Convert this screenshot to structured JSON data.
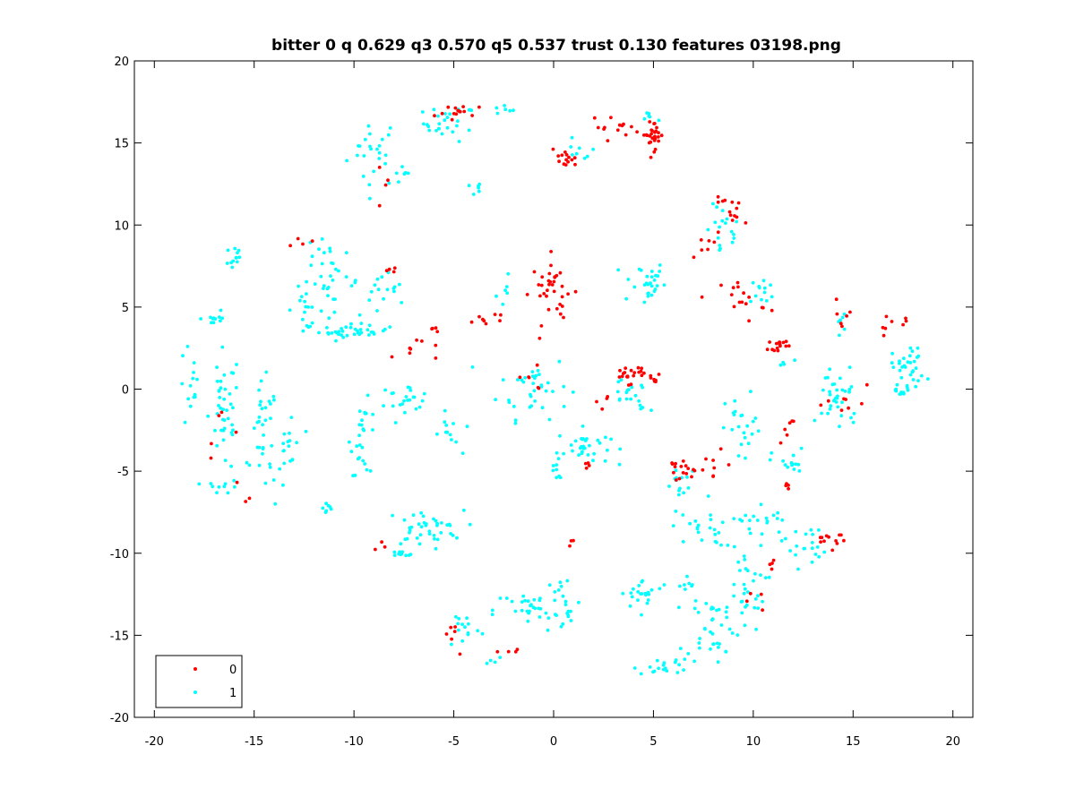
{
  "chart_data": {
    "type": "scatter",
    "title": "bitter 0 q 0.629 q3 0.570 q5 0.537 trust 0.130 features 03198.png",
    "xlabel": "",
    "ylabel": "",
    "xlim": [
      -21,
      21
    ],
    "ylim": [
      -20,
      20
    ],
    "xticks": [
      -20,
      -15,
      -10,
      -5,
      0,
      5,
      10,
      15,
      20
    ],
    "yticks": [
      -20,
      -15,
      -10,
      -5,
      0,
      5,
      10,
      15,
      20
    ],
    "xtick_labels": [
      "-20",
      "-15",
      "-10",
      "-5",
      "0",
      "5",
      "10",
      "15",
      "20"
    ],
    "ytick_labels": [
      "-20",
      "-15",
      "-10",
      "-5",
      "0",
      "5",
      "10",
      "15",
      "20"
    ],
    "grid": false,
    "legend_position": "bottom-left",
    "series": [
      {
        "name": "0",
        "color": "#ff0000",
        "clusters": [
          {
            "cx": 5.0,
            "cy": 15.5,
            "sx": 0.5,
            "sy": 0.8,
            "n": 28
          },
          {
            "cx": 0.5,
            "cy": 14.0,
            "sx": 0.6,
            "sy": 0.5,
            "n": 14
          },
          {
            "cx": 3.0,
            "cy": 16.0,
            "sx": 1.0,
            "sy": 0.6,
            "n": 12
          },
          {
            "cx": -4.5,
            "cy": 16.8,
            "sx": 1.2,
            "sy": 0.5,
            "n": 14
          },
          {
            "cx": -8.5,
            "cy": 12.5,
            "sx": 0.8,
            "sy": 1.5,
            "n": 4
          },
          {
            "cx": 9.0,
            "cy": 10.8,
            "sx": 1.0,
            "sy": 0.8,
            "n": 14
          },
          {
            "cx": 7.8,
            "cy": 8.8,
            "sx": 0.5,
            "sy": 0.8,
            "n": 6
          },
          {
            "cx": 9.5,
            "cy": 5.5,
            "sx": 1.0,
            "sy": 1.2,
            "n": 16
          },
          {
            "cx": 11.3,
            "cy": 2.7,
            "sx": 0.5,
            "sy": 0.3,
            "n": 16
          },
          {
            "cx": 14.3,
            "cy": 4.5,
            "sx": 0.6,
            "sy": 0.8,
            "n": 6
          },
          {
            "cx": 17.0,
            "cy": 3.8,
            "sx": 1.0,
            "sy": 0.6,
            "n": 8
          },
          {
            "cx": 0.0,
            "cy": 6.0,
            "sx": 1.0,
            "sy": 1.8,
            "n": 34
          },
          {
            "cx": 3.8,
            "cy": 0.9,
            "sx": 0.7,
            "sy": 0.5,
            "n": 22
          },
          {
            "cx": -3.4,
            "cy": 4.3,
            "sx": 1.2,
            "sy": 0.4,
            "n": 8
          },
          {
            "cx": -7.0,
            "cy": 2.5,
            "sx": 1.0,
            "sy": 0.8,
            "n": 8
          },
          {
            "cx": -8.2,
            "cy": 7.2,
            "sx": 0.3,
            "sy": 0.3,
            "n": 4
          },
          {
            "cx": -12.2,
            "cy": 8.8,
            "sx": 1.0,
            "sy": 0.3,
            "n": 4
          },
          {
            "cx": -16.5,
            "cy": -3.0,
            "sx": 0.8,
            "sy": 3.0,
            "n": 6
          },
          {
            "cx": 6.5,
            "cy": -5.0,
            "sx": 1.0,
            "sy": 0.8,
            "n": 18
          },
          {
            "cx": 8.0,
            "cy": -4.5,
            "sx": 0.6,
            "sy": 0.6,
            "n": 6
          },
          {
            "cx": 11.7,
            "cy": -2.5,
            "sx": 0.5,
            "sy": 1.0,
            "n": 6
          },
          {
            "cx": 11.8,
            "cy": -6.0,
            "sx": 0.4,
            "sy": 0.4,
            "n": 4
          },
          {
            "cx": 13.8,
            "cy": -9.0,
            "sx": 0.8,
            "sy": 0.6,
            "n": 12
          },
          {
            "cx": 11.0,
            "cy": -10.5,
            "sx": 0.6,
            "sy": 0.6,
            "n": 4
          },
          {
            "cx": 10.0,
            "cy": -13.0,
            "sx": 0.5,
            "sy": 0.8,
            "n": 4
          },
          {
            "cx": 1.8,
            "cy": -4.8,
            "sx": 0.3,
            "sy": 0.2,
            "n": 4
          },
          {
            "cx": 0.8,
            "cy": -9.5,
            "sx": 0.3,
            "sy": 0.3,
            "n": 3
          },
          {
            "cx": -5.0,
            "cy": -14.5,
            "sx": 0.5,
            "sy": 1.2,
            "n": 6
          },
          {
            "cx": -2.0,
            "cy": -16.0,
            "sx": 0.6,
            "sy": 0.2,
            "n": 4
          },
          {
            "cx": -8.5,
            "cy": -9.5,
            "sx": 0.3,
            "sy": 0.8,
            "n": 3
          },
          {
            "cx": 14.8,
            "cy": -1.0,
            "sx": 1.0,
            "sy": 1.0,
            "n": 8
          },
          {
            "cx": 2.5,
            "cy": -1.0,
            "sx": 0.4,
            "sy": 1.0,
            "n": 4
          },
          {
            "cx": -1.2,
            "cy": 0.5,
            "sx": 0.8,
            "sy": 0.6,
            "n": 6
          },
          {
            "cx": -15.3,
            "cy": -6.7,
            "sx": 0.2,
            "sy": 0.2,
            "n": 2
          },
          {
            "cx": -6.0,
            "cy": 3.5,
            "sx": 0.4,
            "sy": 0.4,
            "n": 4
          },
          {
            "cx": 5.0,
            "cy": 0.5,
            "sx": 0.3,
            "sy": 0.4,
            "n": 6
          }
        ]
      },
      {
        "name": "1",
        "color": "#00ffff",
        "clusters": [
          {
            "cx": -9.0,
            "cy": 14.5,
            "sx": 1.2,
            "sy": 2.0,
            "n": 24
          },
          {
            "cx": -7.5,
            "cy": 13.0,
            "sx": 0.4,
            "sy": 0.5,
            "n": 6
          },
          {
            "cx": -5.2,
            "cy": 16.2,
            "sx": 1.2,
            "sy": 1.0,
            "n": 26
          },
          {
            "cx": -4.0,
            "cy": 12.2,
            "sx": 0.6,
            "sy": 0.4,
            "n": 6
          },
          {
            "cx": -2.5,
            "cy": 17.0,
            "sx": 0.6,
            "sy": 0.3,
            "n": 6
          },
          {
            "cx": 1.2,
            "cy": 14.5,
            "sx": 0.8,
            "sy": 0.6,
            "n": 8
          },
          {
            "cx": 4.8,
            "cy": 16.5,
            "sx": 0.4,
            "sy": 0.4,
            "n": 6
          },
          {
            "cx": 8.5,
            "cy": 9.5,
            "sx": 0.8,
            "sy": 1.5,
            "n": 18
          },
          {
            "cx": 10.5,
            "cy": 6.0,
            "sx": 0.6,
            "sy": 0.8,
            "n": 12
          },
          {
            "cx": 4.5,
            "cy": 6.5,
            "sx": 1.0,
            "sy": 1.3,
            "n": 28
          },
          {
            "cx": 3.8,
            "cy": 0.0,
            "sx": 1.0,
            "sy": 1.0,
            "n": 14
          },
          {
            "cx": -1.0,
            "cy": 0.2,
            "sx": 1.6,
            "sy": 1.8,
            "n": 36
          },
          {
            "cx": -2.5,
            "cy": 5.5,
            "sx": 0.5,
            "sy": 1.2,
            "n": 6
          },
          {
            "cx": 1.5,
            "cy": -3.5,
            "sx": 1.2,
            "sy": 1.0,
            "n": 32
          },
          {
            "cx": 0.2,
            "cy": -5.0,
            "sx": 0.5,
            "sy": 0.8,
            "n": 8
          },
          {
            "cx": -10.0,
            "cy": 3.5,
            "sx": 1.6,
            "sy": 0.3,
            "n": 34
          },
          {
            "cx": -11.0,
            "cy": 6.5,
            "sx": 1.2,
            "sy": 1.5,
            "n": 24
          },
          {
            "cx": -12.5,
            "cy": 5.0,
            "sx": 0.8,
            "sy": 1.2,
            "n": 16
          },
          {
            "cx": -11.8,
            "cy": 8.5,
            "sx": 0.6,
            "sy": 0.6,
            "n": 8
          },
          {
            "cx": -8.5,
            "cy": 5.5,
            "sx": 1.5,
            "sy": 1.5,
            "n": 18
          },
          {
            "cx": -16.0,
            "cy": 8.0,
            "sx": 0.4,
            "sy": 1.0,
            "n": 12
          },
          {
            "cx": -17.0,
            "cy": 4.3,
            "sx": 0.6,
            "sy": 0.4,
            "n": 10
          },
          {
            "cx": -16.5,
            "cy": -1.5,
            "sx": 0.7,
            "sy": 3.5,
            "n": 40
          },
          {
            "cx": -18.2,
            "cy": 0.0,
            "sx": 0.5,
            "sy": 2.5,
            "n": 14
          },
          {
            "cx": -14.5,
            "cy": -3.0,
            "sx": 0.6,
            "sy": 3.0,
            "n": 32
          },
          {
            "cx": -13.2,
            "cy": -3.5,
            "sx": 0.6,
            "sy": 2.5,
            "n": 18
          },
          {
            "cx": -16.5,
            "cy": -6.0,
            "sx": 0.8,
            "sy": 0.4,
            "n": 10
          },
          {
            "cx": -11.4,
            "cy": -7.1,
            "sx": 0.3,
            "sy": 0.5,
            "n": 8
          },
          {
            "cx": -9.5,
            "cy": -3.0,
            "sx": 0.6,
            "sy": 2.0,
            "n": 26
          },
          {
            "cx": -7.5,
            "cy": -0.5,
            "sx": 1.3,
            "sy": 0.7,
            "n": 22
          },
          {
            "cx": -5.2,
            "cy": -2.8,
            "sx": 0.5,
            "sy": 1.2,
            "n": 12
          },
          {
            "cx": -6.5,
            "cy": -8.5,
            "sx": 1.8,
            "sy": 1.0,
            "n": 40
          },
          {
            "cx": -7.8,
            "cy": -10.1,
            "sx": 0.8,
            "sy": 0.2,
            "n": 10
          },
          {
            "cx": -1.0,
            "cy": -13.5,
            "sx": 1.8,
            "sy": 1.2,
            "n": 32
          },
          {
            "cx": 0.5,
            "cy": -13.0,
            "sx": 0.8,
            "sy": 1.8,
            "n": 18
          },
          {
            "cx": -4.5,
            "cy": -14.5,
            "sx": 0.8,
            "sy": 1.2,
            "n": 14
          },
          {
            "cx": -3.0,
            "cy": -16.5,
            "sx": 0.5,
            "sy": 0.3,
            "n": 4
          },
          {
            "cx": 4.5,
            "cy": -12.5,
            "sx": 1.0,
            "sy": 0.8,
            "n": 22
          },
          {
            "cx": 6.5,
            "cy": -12.0,
            "sx": 0.6,
            "sy": 0.6,
            "n": 8
          },
          {
            "cx": 5.5,
            "cy": -16.8,
            "sx": 1.2,
            "sy": 0.6,
            "n": 18
          },
          {
            "cx": 8.0,
            "cy": -14.5,
            "sx": 1.2,
            "sy": 2.0,
            "n": 40
          },
          {
            "cx": 9.5,
            "cy": -12.0,
            "sx": 1.0,
            "sy": 2.5,
            "n": 30
          },
          {
            "cx": 7.5,
            "cy": -8.5,
            "sx": 1.5,
            "sy": 1.0,
            "n": 24
          },
          {
            "cx": 10.5,
            "cy": -8.0,
            "sx": 1.0,
            "sy": 1.0,
            "n": 16
          },
          {
            "cx": 12.5,
            "cy": -9.5,
            "sx": 1.0,
            "sy": 1.2,
            "n": 20
          },
          {
            "cx": 11.8,
            "cy": -4.5,
            "sx": 0.8,
            "sy": 0.8,
            "n": 16
          },
          {
            "cx": 9.5,
            "cy": -2.5,
            "sx": 0.8,
            "sy": 2.0,
            "n": 22
          },
          {
            "cx": 6.5,
            "cy": -6.0,
            "sx": 1.0,
            "sy": 1.0,
            "n": 14
          },
          {
            "cx": 14.3,
            "cy": -0.5,
            "sx": 1.0,
            "sy": 2.0,
            "n": 34
          },
          {
            "cx": 14.2,
            "cy": 4.0,
            "sx": 0.4,
            "sy": 0.5,
            "n": 6
          },
          {
            "cx": 17.8,
            "cy": 1.3,
            "sx": 0.8,
            "sy": 1.3,
            "n": 34
          },
          {
            "cx": 17.3,
            "cy": -0.1,
            "sx": 0.5,
            "sy": 0.2,
            "n": 8
          },
          {
            "cx": 4.3,
            "cy": -1.0,
            "sx": 0.5,
            "sy": 0.5,
            "n": 6
          },
          {
            "cx": 11.5,
            "cy": 1.5,
            "sx": 0.4,
            "sy": 0.4,
            "n": 4
          }
        ]
      }
    ],
    "legend": [
      {
        "label": "0",
        "color": "#ff0000"
      },
      {
        "label": "1",
        "color": "#00ffff"
      }
    ]
  }
}
